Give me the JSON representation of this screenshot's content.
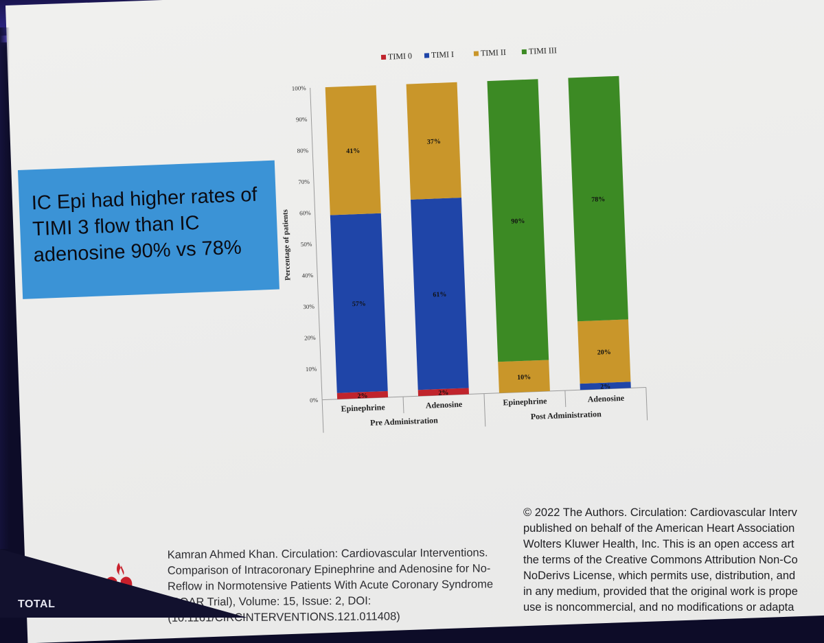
{
  "callout": {
    "lines": [
      "IC Epi had higher rates of",
      "TIMI 3 flow than IC",
      "adenosine 90% vs 78%"
    ]
  },
  "chart_data": {
    "type": "bar",
    "stacked": true,
    "categories": [
      "Epinephrine",
      "Adenosine",
      "Epinephrine",
      "Adenosine"
    ],
    "groups": [
      {
        "label": "Pre Administration",
        "categories": [
          0,
          1
        ]
      },
      {
        "label": "Post Administration",
        "categories": [
          2,
          3
        ]
      }
    ],
    "series": [
      {
        "name": "TIMI 0",
        "color": "#c0242c",
        "values": [
          2,
          2,
          0,
          0
        ],
        "labels": [
          "2%",
          "2%",
          "",
          ""
        ]
      },
      {
        "name": "TIMI I",
        "color": "#1f45a8",
        "values": [
          57,
          61,
          0,
          2
        ],
        "labels": [
          "57%",
          "61%",
          "",
          "2%"
        ]
      },
      {
        "name": "TIMI II",
        "color": "#c9962a",
        "values": [
          41,
          37,
          10,
          20
        ],
        "labels": [
          "41%",
          "37%",
          "10%",
          "20%"
        ]
      },
      {
        "name": "TIMI III",
        "color": "#3c8a24",
        "values": [
          0,
          0,
          90,
          78
        ],
        "labels": [
          "",
          "",
          "90%",
          "78%"
        ]
      }
    ],
    "ylabel": "Percentage of patients",
    "ylim": [
      0,
      100
    ],
    "yticks": [
      "0%",
      "10%",
      "20%",
      "30%",
      "40%",
      "50%",
      "60%",
      "70%",
      "80%",
      "90%",
      "100%"
    ],
    "legend_position": "top",
    "grid": false
  },
  "references": {
    "left": [
      "Kamran Ahmed Khan. Circulation: Cardiovascular Interventions.",
      "Comparison of Intracoronary Epinephrine and Adenosine for No-",
      "Reflow in Normotensive Patients With Acute Coronary Syndrome",
      "(COAR Trial), Volume: 15, Issue: 2, DOI:",
      "(10.1161/CIRCINTERVENTIONS.121.011408)"
    ],
    "right": [
      "© 2022 The Authors. Circulation: Cardiovascular Interv",
      "published on behalf of the American Heart Association",
      "Wolters Kluwer Health, Inc. This is an open access art",
      "the terms of the Creative Commons Attribution Non-Co",
      "NoDerivs License, which permits use, distribution, and",
      "in any medium, provided that the original work is prope",
      "use is noncommercial, and no modifications or adapta"
    ]
  },
  "footer": {
    "total_label": "TOTAL"
  },
  "logo_icon": "heart-torch-icon"
}
